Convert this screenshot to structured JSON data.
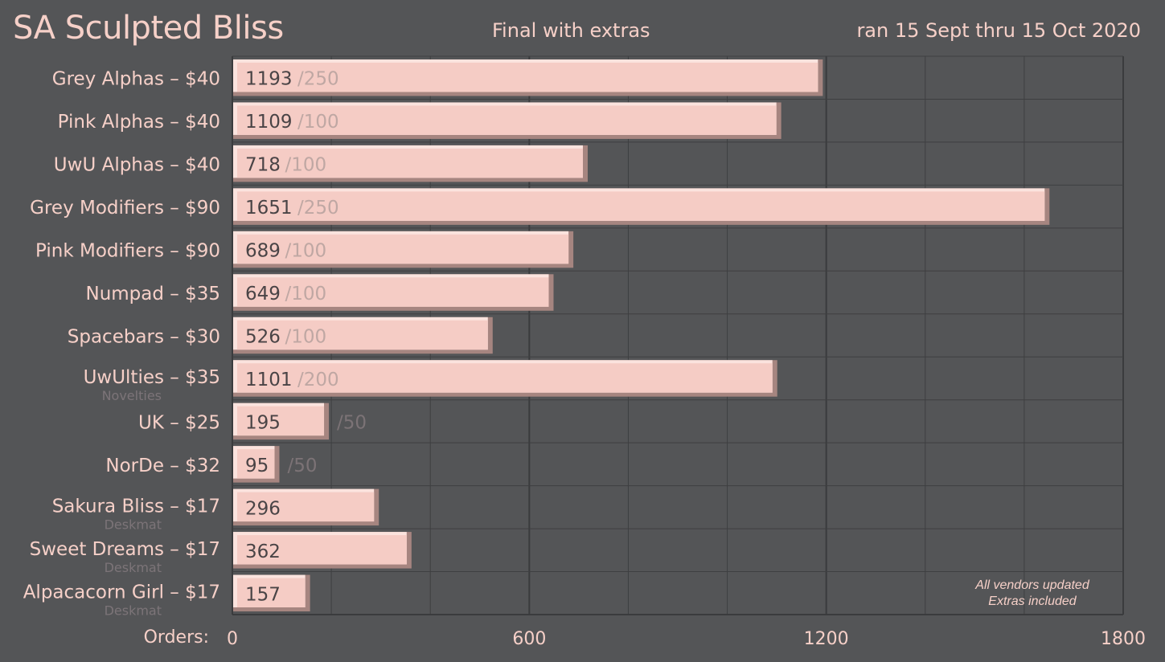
{
  "header": {
    "title": "SA Sculpted Bliss",
    "subtitle": "Final with extras",
    "date_range": "ran 15 Sept thru 15 Oct 2020"
  },
  "note": {
    "line1": "All vendors updated",
    "line2": "Extras included"
  },
  "colors": {
    "background": "#545557",
    "bar_face": "#f5ccc5",
    "bar_highlight": "#fbe3de",
    "bar_shadow": "#a68580",
    "label": "#f6d0c8",
    "value_text": "#4a4446",
    "goal_text": "#bfa7a3",
    "goal_text_outside": "#7c7376",
    "sublabel": "#7c7478",
    "grid": "#3e3f41"
  },
  "chart_data": {
    "type": "bar",
    "orientation": "horizontal",
    "title": "SA Sculpted Bliss",
    "subtitle": "Final with extras",
    "xlabel": "Orders:",
    "xlim": [
      0,
      1800
    ],
    "xticks": [
      0,
      600,
      1200,
      1800
    ],
    "grid": true,
    "categories": [
      {
        "label": "Grey Alphas – $40",
        "sublabel": "",
        "value": 1193,
        "goal": "/250"
      },
      {
        "label": "Pink Alphas – $40",
        "sublabel": "",
        "value": 1109,
        "goal": "/100"
      },
      {
        "label": "UwU Alphas – $40",
        "sublabel": "",
        "value": 718,
        "goal": "/100"
      },
      {
        "label": "Grey Modifiers – $90",
        "sublabel": "",
        "value": 1651,
        "goal": "/250"
      },
      {
        "label": "Pink Modifiers – $90",
        "sublabel": "",
        "value": 689,
        "goal": "/100"
      },
      {
        "label": "Numpad – $35",
        "sublabel": "",
        "value": 649,
        "goal": "/100"
      },
      {
        "label": "Spacebars – $30",
        "sublabel": "",
        "value": 526,
        "goal": "/100"
      },
      {
        "label": "UwUlties – $35",
        "sublabel": "Novelties",
        "value": 1101,
        "goal": "/200"
      },
      {
        "label": "UK – $25",
        "sublabel": "",
        "value": 195,
        "goal": "/50"
      },
      {
        "label": "NorDe – $32",
        "sublabel": "",
        "value": 95,
        "goal": "/50"
      },
      {
        "label": "Sakura Bliss – $17",
        "sublabel": "Deskmat",
        "value": 296,
        "goal": ""
      },
      {
        "label": "Sweet Dreams – $17",
        "sublabel": "Deskmat",
        "value": 362,
        "goal": ""
      },
      {
        "label": "Alpacacorn Girl – $17",
        "sublabel": "Deskmat",
        "value": 157,
        "goal": ""
      }
    ]
  }
}
